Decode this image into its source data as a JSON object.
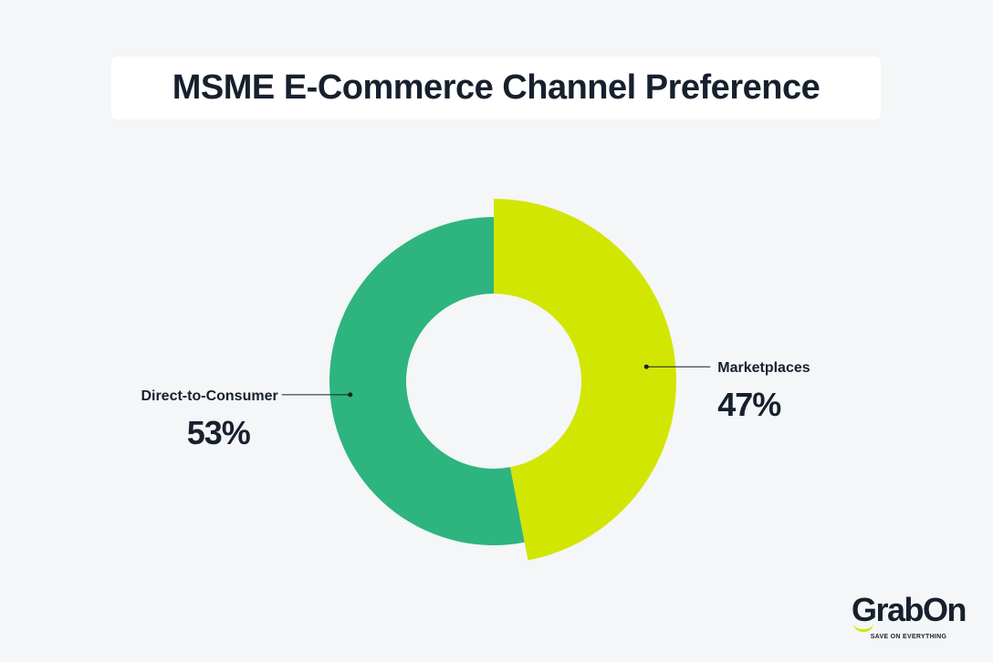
{
  "title": "MSME E-Commerce Channel Preference",
  "chart_data": {
    "type": "pie",
    "title": "MSME E-Commerce Channel Preference",
    "donut": true,
    "slices": [
      {
        "label": "Marketplaces",
        "value": 47,
        "value_label": "47%",
        "color": "#d2e603",
        "exploded": true
      },
      {
        "label": "Direct-to-Consumer",
        "value": 53,
        "value_label": "53%",
        "color": "#2eb47e",
        "exploded": false
      }
    ]
  },
  "logo": {
    "name": "GrabOn",
    "tagline": "SAVE ON EVERYTHING",
    "accent_color": "#d2e603"
  }
}
